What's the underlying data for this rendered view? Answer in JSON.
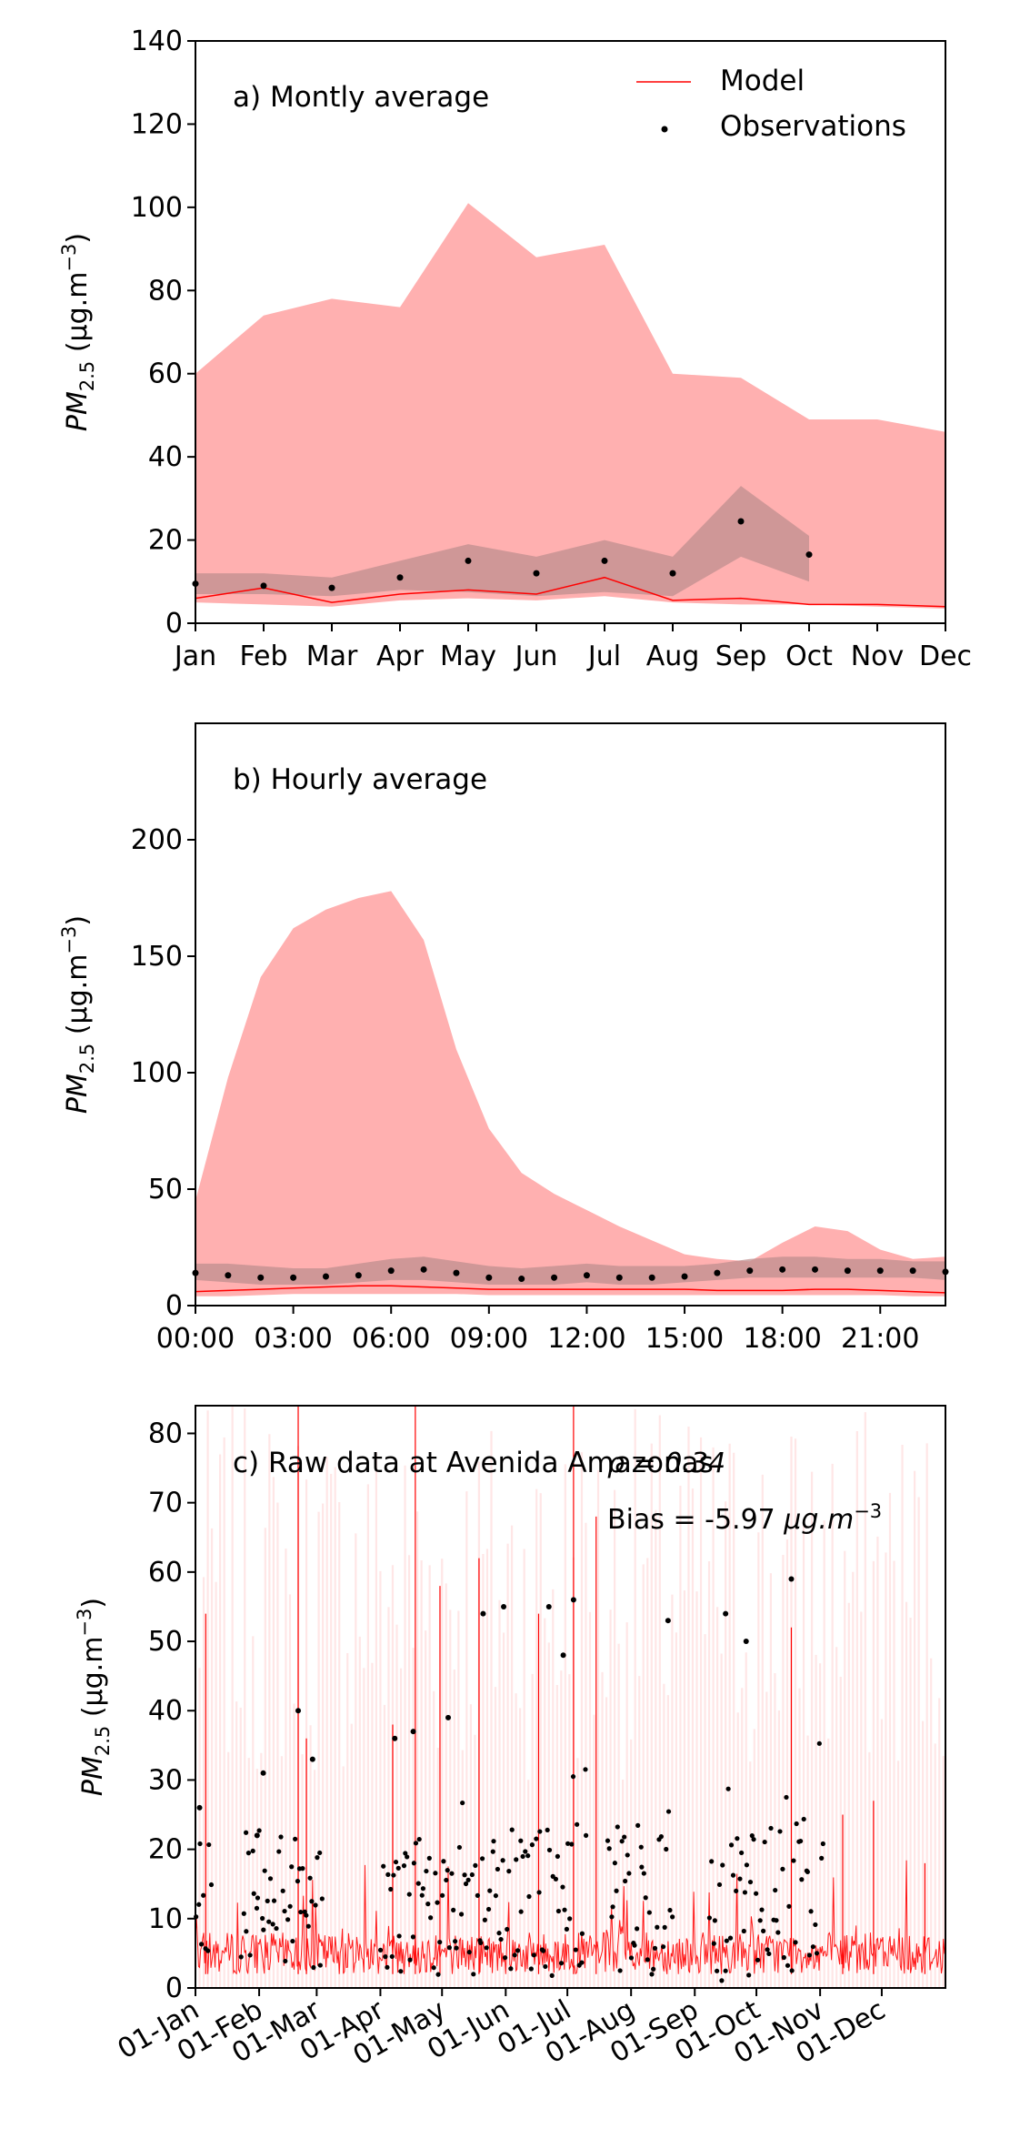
{
  "figure": {
    "colors": {
      "model_line": "#ff0000",
      "model_band": "#ffb0b0",
      "obs_band": "#bf8f8f",
      "obs_point": "#000000",
      "raw_band": "#ffe6e6"
    }
  },
  "chart_data": [
    {
      "type": "line",
      "label": "a) Montly average",
      "ylabel_main": "PM",
      "ylabel_sub": "2.5",
      "ylabel_units": "(μg.m",
      "ylabel_sup": "−3",
      "ylabel_close": ")",
      "ylim": [
        0,
        140
      ],
      "yticks": [
        "0",
        "20",
        "40",
        "60",
        "80",
        "100",
        "120",
        "140"
      ],
      "categories": [
        "Jan",
        "Feb",
        "Mar",
        "Apr",
        "May",
        "Jun",
        "Jul",
        "Aug",
        "Sep",
        "Oct",
        "Nov",
        "Dec"
      ],
      "legend": {
        "placement": "top-right",
        "model": "Model",
        "observations": "Observations"
      },
      "series": [
        {
          "name": "Model",
          "values": [
            6.0,
            8.5,
            5.0,
            7.0,
            8.0,
            7.0,
            11.0,
            5.5,
            6.0,
            4.5,
            4.5,
            4.0
          ]
        },
        {
          "name": "Observations",
          "values": [
            9.5,
            9.0,
            8.5,
            11.0,
            15.0,
            12.0,
            15.0,
            12.0,
            24.5,
            16.5,
            null,
            null
          ]
        }
      ],
      "model_upper": [
        60,
        74,
        78,
        76,
        101,
        88,
        91,
        60,
        59,
        49,
        49,
        46
      ],
      "model_lower": [
        5.0,
        4.5,
        4.0,
        5.5,
        6.0,
        5.5,
        6.5,
        5.0,
        4.5,
        4.5,
        4.0,
        3.5
      ],
      "obs_upper": [
        12,
        12,
        11,
        15,
        19,
        16,
        20,
        16,
        33,
        21,
        null,
        null
      ],
      "obs_lower": [
        7,
        7,
        6.5,
        8,
        7.5,
        6.5,
        7.5,
        6.5,
        16,
        10,
        null,
        null
      ]
    },
    {
      "type": "line",
      "label": "b) Hourly average",
      "ylabel_main": "PM",
      "ylabel_sub": "2.5",
      "ylabel_units": "(μg.m",
      "ylabel_sup": "−3",
      "ylabel_close": ")",
      "ylim": [
        0,
        250
      ],
      "yticks": [
        "0",
        "50",
        "100",
        "150",
        "200"
      ],
      "xlim": [
        0,
        23
      ],
      "xticks": [
        "00:00",
        "03:00",
        "06:00",
        "09:00",
        "12:00",
        "15:00",
        "18:00",
        "21:00"
      ],
      "series": [
        {
          "name": "Model",
          "values": [
            6,
            6.5,
            7,
            7.5,
            8,
            8.5,
            8.5,
            8,
            7.5,
            7,
            7,
            7,
            7,
            7,
            7,
            7,
            6.5,
            6.5,
            6.5,
            7,
            7,
            6.5,
            6,
            5.5
          ]
        },
        {
          "name": "Observations",
          "values": [
            14,
            13,
            12,
            12,
            12.5,
            13,
            15,
            15.5,
            14,
            12,
            11.5,
            12,
            13,
            12,
            12,
            12.5,
            14,
            15,
            15.5,
            15.5,
            15,
            15,
            15,
            14.5
          ]
        }
      ],
      "model_upper": [
        45,
        98,
        141,
        162,
        170,
        175,
        178,
        157,
        110,
        76,
        57,
        48,
        41,
        34,
        28,
        22,
        20,
        19,
        27,
        34,
        32,
        24,
        20,
        21
      ],
      "model_lower": [
        4,
        4,
        4.5,
        5,
        5,
        5,
        5,
        5,
        5,
        4.5,
        4.5,
        4.5,
        4.5,
        4.5,
        4.5,
        4.5,
        4.5,
        4.5,
        4.5,
        4.5,
        4.5,
        4.5,
        4,
        4
      ],
      "obs_upper": [
        18,
        18,
        17,
        16,
        16,
        18,
        20,
        21,
        19,
        17,
        16,
        17,
        18,
        17,
        17,
        17,
        18,
        20,
        21,
        21,
        20,
        20,
        19,
        19
      ],
      "obs_lower": [
        11,
        10,
        9,
        9,
        9,
        10,
        11,
        11,
        10,
        9,
        9,
        9,
        10,
        9,
        9,
        10,
        11,
        12,
        12,
        12,
        12,
        12,
        12,
        11
      ]
    },
    {
      "type": "line",
      "label": "c) Raw data at Avenida Amazonas",
      "corr_text": "ρ = 0.34",
      "bias_prefix": "Bias = -5.97 ",
      "bias_units": "μg.m",
      "bias_sup": "−3",
      "ylabel_main": "PM",
      "ylabel_sub": "2.5",
      "ylabel_units": "(μg.m",
      "ylabel_sup": "−3",
      "ylabel_close": ")",
      "ylim": [
        0,
        84
      ],
      "yticks": [
        "0",
        "10",
        "20",
        "30",
        "40",
        "50",
        "60",
        "70",
        "80"
      ],
      "xlim_days": [
        0,
        365
      ],
      "xticks": [
        "01-Jan",
        "01-Feb",
        "01-Mar",
        "01-Apr",
        "01-May",
        "01-Jun",
        "01-Jul",
        "01-Aug",
        "01-Sep",
        "01-Oct",
        "01-Nov",
        "01-Dec"
      ],
      "xtick_days": [
        0,
        31,
        59,
        90,
        120,
        151,
        181,
        212,
        243,
        273,
        304,
        334
      ],
      "observation_periods_days": [
        [
          0,
          8
        ],
        [
          22,
          62
        ],
        [
          90,
          190
        ],
        [
          200,
          232
        ],
        [
          250,
          305
        ]
      ],
      "observation_peaks": [
        [
          2,
          26
        ],
        [
          30,
          22
        ],
        [
          33,
          31
        ],
        [
          50,
          40
        ],
        [
          57,
          33
        ],
        [
          97,
          36
        ],
        [
          106,
          37
        ],
        [
          123,
          39
        ],
        [
          140,
          54
        ],
        [
          150,
          55
        ],
        [
          172,
          55
        ],
        [
          179,
          48
        ],
        [
          184,
          56
        ],
        [
          230,
          53
        ],
        [
          258,
          54
        ],
        [
          268,
          50
        ],
        [
          290,
          59
        ]
      ],
      "model_spikes": [
        [
          5,
          54
        ],
        [
          50,
          84
        ],
        [
          54,
          36
        ],
        [
          96,
          38
        ],
        [
          107,
          84
        ],
        [
          119,
          58
        ],
        [
          138,
          62
        ],
        [
          167,
          54
        ],
        [
          184,
          84
        ],
        [
          195,
          68
        ],
        [
          290,
          52
        ],
        [
          315,
          25
        ],
        [
          330,
          27
        ],
        [
          355,
          18
        ]
      ]
    }
  ]
}
